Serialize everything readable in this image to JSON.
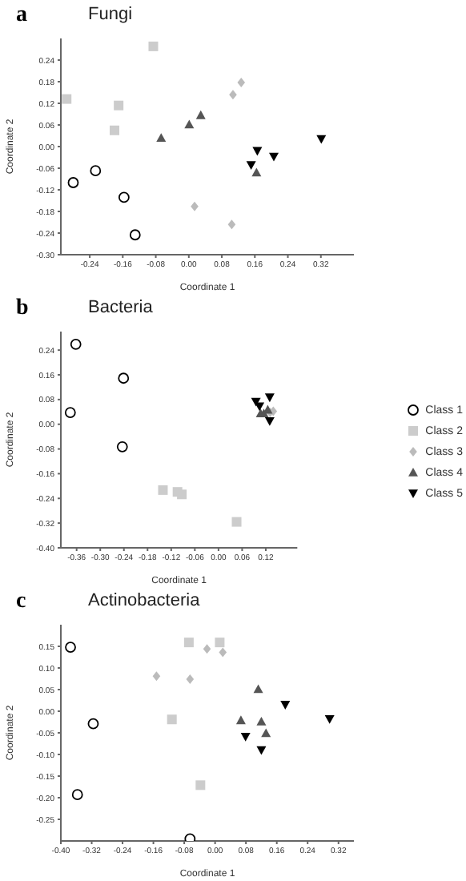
{
  "chart_data": [
    {
      "type": "scatter",
      "title": "Fungi",
      "annotations": [
        "a"
      ],
      "xlabel": "Coordinate 1",
      "ylabel": "Coordinate 2",
      "xlim": [
        -0.31,
        0.4
      ],
      "xticks": [
        -0.24,
        -0.16,
        -0.08,
        {
          "value": 0,
          "label": "0.00"
        },
        0.08,
        0.16,
        0.24,
        0.32
      ],
      "ylim": [
        -0.3,
        0.3
      ],
      "yticks": [
        {
          "value": -0.3,
          "label": "-0.30"
        },
        -0.24,
        -0.18,
        -0.12,
        -0.06,
        {
          "value": 0,
          "label": "0.00"
        },
        0.06,
        0.12,
        0.18,
        0.24
      ],
      "grid": false,
      "legend": false,
      "series": [
        {
          "color": "#000000",
          "marker": "circle",
          "x": [
            -0.28,
            -0.226,
            -0.157,
            -0.13
          ],
          "values": [
            -0.1,
            -0.067,
            -0.141,
            -0.245
          ]
        },
        {
          "color": "#cccccc",
          "marker": "square",
          "x": [
            -0.086,
            -0.296,
            -0.17,
            -0.18
          ],
          "values": [
            0.278,
            0.132,
            0.114,
            0.045
          ]
        },
        {
          "color": "#bbbbbb",
          "marker": "diamond",
          "x": [
            0.127,
            0.107,
            0.014,
            0.104
          ],
          "values": [
            0.178,
            0.144,
            -0.166,
            -0.216
          ]
        },
        {
          "color": "#555555",
          "marker": "triangle",
          "x": [
            -0.067,
            0.001,
            0.029,
            0.164
          ],
          "values": [
            0.024,
            0.061,
            0.087,
            -0.072
          ]
        },
        {
          "color": "#000000",
          "marker": "triangle-down",
          "x": [
            0.166,
            0.151,
            0.206,
            0.321
          ],
          "values": [
            -0.012,
            -0.051,
            -0.028,
            0.021
          ]
        }
      ]
    },
    {
      "type": "scatter",
      "title": "Bacteria",
      "annotations": [
        "b"
      ],
      "xlabel": "Coordinate 1",
      "ylabel": "Coordinate 2",
      "xlim": [
        -0.4,
        0.2
      ],
      "xticks": [
        -0.36,
        {
          "value": -0.3,
          "label": "-0.30"
        },
        -0.24,
        -0.18,
        -0.12,
        -0.06,
        {
          "value": 0,
          "label": "0.00"
        },
        0.06,
        0.12
      ],
      "ylim": [
        -0.4,
        0.3
      ],
      "yticks": [
        {
          "value": -0.4,
          "label": "-0.40"
        },
        -0.32,
        -0.24,
        -0.16,
        -0.08,
        {
          "value": 0,
          "label": "0.00"
        },
        0.08,
        0.16,
        0.24
      ],
      "grid": false,
      "legend": "right",
      "series": [
        {
          "name": "Class 1",
          "color": "#000000",
          "marker": "circle",
          "x": [
            -0.362,
            -0.241,
            -0.376,
            -0.244
          ],
          "values": [
            0.259,
            0.149,
            0.038,
            -0.073
          ]
        },
        {
          "name": "Class 2",
          "color": "#cccccc",
          "marker": "square",
          "x": [
            -0.141,
            -0.104,
            -0.093,
            0.046
          ],
          "values": [
            -0.213,
            -0.219,
            -0.227,
            -0.316
          ]
        },
        {
          "name": "Class 3",
          "color": "#bbbbbb",
          "marker": "diamond",
          "x": [
            0.139,
            0.131
          ],
          "values": [
            0.042,
            0.038
          ]
        },
        {
          "name": "Class 4",
          "color": "#555555",
          "marker": "triangle",
          "x": [
            0.125,
            0.107,
            0.115
          ],
          "values": [
            0.047,
            0.035,
            0.035
          ]
        },
        {
          "name": "Class 5",
          "color": "#000000",
          "marker": "triangle-down",
          "x": [
            0.095,
            0.104,
            0.13,
            0.13
          ],
          "values": [
            0.073,
            0.058,
            0.087,
            0.01
          ]
        }
      ]
    },
    {
      "type": "scatter",
      "title": "Actinobacteria",
      "annotations": [
        "c"
      ],
      "xlabel": "Coordinate 1",
      "ylabel": "Coordinate 2",
      "xlim": [
        -0.4,
        0.36
      ],
      "xticks": [
        {
          "value": -0.4,
          "label": "-0.40"
        },
        -0.32,
        -0.24,
        -0.16,
        -0.08,
        {
          "value": 0,
          "label": "0.00"
        },
        0.08,
        0.16,
        0.24,
        0.32
      ],
      "ylim": [
        -0.3,
        0.2
      ],
      "yticks": [
        -0.25,
        {
          "value": -0.2,
          "label": "-0.20"
        },
        -0.15,
        {
          "value": -0.1,
          "label": "-0.10"
        },
        -0.05,
        {
          "value": 0,
          "label": "0.00"
        },
        0.05,
        {
          "value": 0.1,
          "label": "0.10"
        },
        0.15
      ],
      "grid": false,
      "legend": false,
      "series": [
        {
          "color": "#000000",
          "marker": "circle",
          "x": [
            -0.375,
            -0.316,
            -0.357,
            -0.065
          ],
          "values": [
            0.148,
            -0.029,
            -0.193,
            -0.295
          ]
        },
        {
          "color": "#cccccc",
          "marker": "square",
          "x": [
            -0.068,
            0.012,
            -0.112,
            -0.038
          ],
          "values": [
            0.159,
            0.159,
            -0.019,
            -0.171
          ]
        },
        {
          "color": "#bbbbbb",
          "marker": "diamond",
          "x": [
            -0.152,
            -0.065,
            -0.021,
            0.02
          ],
          "values": [
            0.081,
            0.074,
            0.144,
            0.136
          ]
        },
        {
          "color": "#555555",
          "marker": "triangle",
          "x": [
            0.112,
            0.067,
            0.12,
            0.132
          ],
          "values": [
            0.051,
            -0.021,
            -0.024,
            -0.051
          ]
        },
        {
          "color": "#000000",
          "marker": "triangle-down",
          "x": [
            0.182,
            0.079,
            0.12,
            0.297
          ],
          "values": [
            0.015,
            -0.059,
            -0.09,
            -0.018
          ]
        }
      ]
    }
  ]
}
